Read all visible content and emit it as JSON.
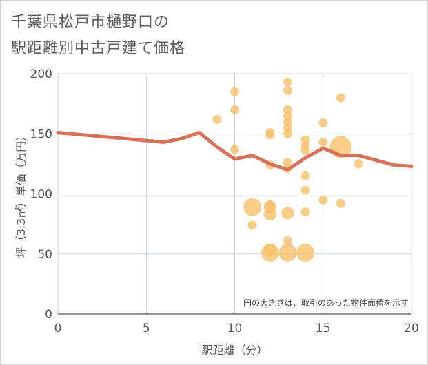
{
  "title_line1": "千葉県松戸市樋野口の",
  "title_line2": "駅距離別中古戸建て価格",
  "chart_data": {
    "type": "scatter",
    "xlabel": "駅距離（分）",
    "ylabel": "坪（3.3㎡）単価（万円）",
    "xlim": [
      0,
      20
    ],
    "ylim": [
      0,
      200
    ],
    "xticks": [
      0,
      5,
      10,
      15,
      20
    ],
    "yticks": [
      0,
      50,
      100,
      150,
      200
    ],
    "grid": true,
    "note": "円の大きさは、取引のあった物件面積を示す",
    "bubble_color": "#f5c06a",
    "line_color": "#d9705a",
    "points": [
      {
        "x": 9,
        "y": 162,
        "s": 1
      },
      {
        "x": 10,
        "y": 185,
        "s": 1
      },
      {
        "x": 10,
        "y": 170,
        "s": 1
      },
      {
        "x": 10,
        "y": 137,
        "s": 1
      },
      {
        "x": 11,
        "y": 89,
        "s": 4
      },
      {
        "x": 11,
        "y": 74,
        "s": 1
      },
      {
        "x": 12,
        "y": 151,
        "s": 1
      },
      {
        "x": 12,
        "y": 149,
        "s": 1
      },
      {
        "x": 12,
        "y": 124,
        "s": 1
      },
      {
        "x": 12,
        "y": 91,
        "s": 1
      },
      {
        "x": 12,
        "y": 89,
        "s": 2
      },
      {
        "x": 12,
        "y": 83,
        "s": 2
      },
      {
        "x": 12,
        "y": 53,
        "s": 2
      },
      {
        "x": 12,
        "y": 51,
        "s": 4
      },
      {
        "x": 13,
        "y": 193,
        "s": 1
      },
      {
        "x": 13,
        "y": 186,
        "s": 1
      },
      {
        "x": 13,
        "y": 170,
        "s": 1
      },
      {
        "x": 13,
        "y": 165,
        "s": 1
      },
      {
        "x": 13,
        "y": 160,
        "s": 1
      },
      {
        "x": 13,
        "y": 155,
        "s": 1
      },
      {
        "x": 13,
        "y": 150,
        "s": 1
      },
      {
        "x": 13,
        "y": 126,
        "s": 1
      },
      {
        "x": 13,
        "y": 121,
        "s": 1
      },
      {
        "x": 13,
        "y": 84,
        "s": 2
      },
      {
        "x": 13,
        "y": 61,
        "s": 1
      },
      {
        "x": 13,
        "y": 51,
        "s": 4
      },
      {
        "x": 14,
        "y": 145,
        "s": 1
      },
      {
        "x": 14,
        "y": 140,
        "s": 1
      },
      {
        "x": 14,
        "y": 136,
        "s": 1
      },
      {
        "x": 14,
        "y": 115,
        "s": 1
      },
      {
        "x": 14,
        "y": 103,
        "s": 1
      },
      {
        "x": 14,
        "y": 85,
        "s": 1
      },
      {
        "x": 14,
        "y": 51,
        "s": 4
      },
      {
        "x": 15,
        "y": 159,
        "s": 1
      },
      {
        "x": 15,
        "y": 143,
        "s": 1
      },
      {
        "x": 15,
        "y": 95,
        "s": 1
      },
      {
        "x": 16,
        "y": 180,
        "s": 1
      },
      {
        "x": 16,
        "y": 139,
        "s": 6
      },
      {
        "x": 16,
        "y": 92,
        "s": 1
      },
      {
        "x": 17,
        "y": 125,
        "s": 1
      }
    ],
    "line": {
      "x": [
        0,
        6,
        7,
        8,
        9,
        10,
        11,
        12,
        13,
        14,
        15,
        16,
        17,
        19,
        20
      ],
      "y": [
        151,
        143,
        146,
        151,
        139,
        129,
        132,
        125,
        120,
        130,
        138,
        132,
        132,
        124,
        123
      ]
    }
  }
}
